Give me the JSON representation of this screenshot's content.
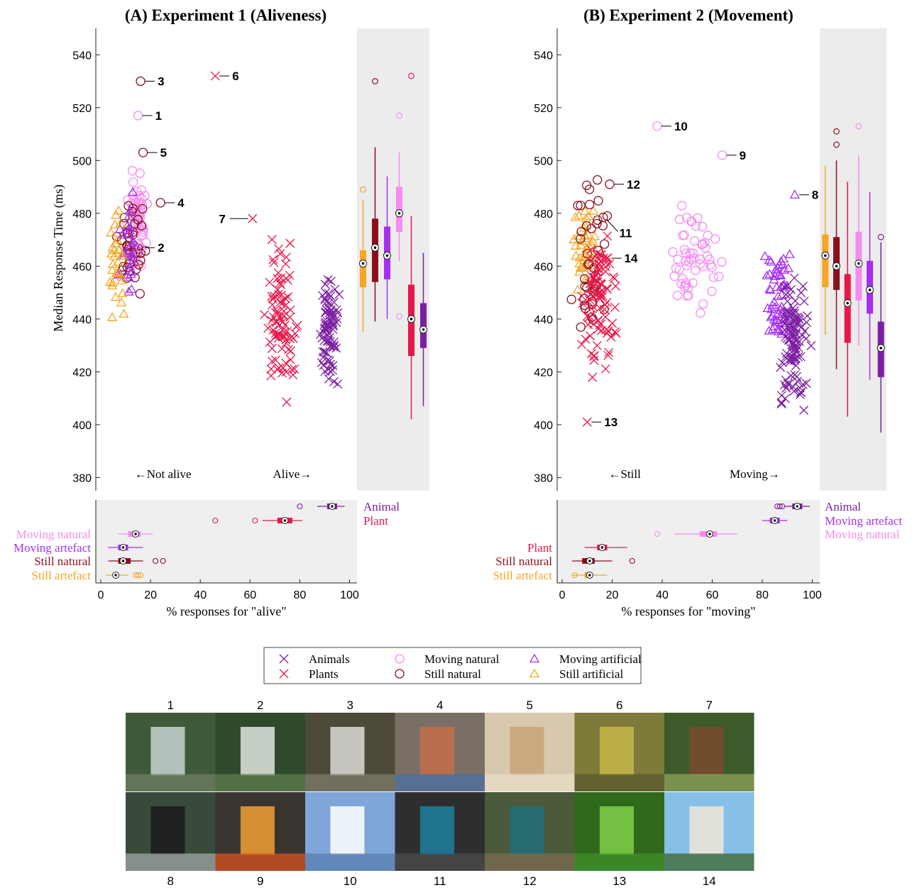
{
  "colors": {
    "animals": "#7b1fa2",
    "plants": "#e8174a",
    "moving_natural": "#f58cf0",
    "still_natural": "#8b0f1c",
    "moving_artificial": "#a62ff0",
    "still_artificial": "#f5a623",
    "panel_gray": "#efefef",
    "gray_zone": "#ececec"
  },
  "legend": {
    "items": [
      {
        "key": "animals",
        "label": "Animals",
        "marker": "x"
      },
      {
        "key": "moving_natural",
        "label": "Moving natural",
        "marker": "o"
      },
      {
        "key": "moving_artificial",
        "label": "Moving artificial",
        "marker": "triangle"
      },
      {
        "key": "plants",
        "label": "Plants",
        "marker": "x"
      },
      {
        "key": "still_natural",
        "label": "Still natural",
        "marker": "o"
      },
      {
        "key": "still_artificial",
        "label": "Still artificial",
        "marker": "triangle"
      }
    ]
  },
  "thumbnails": {
    "row1_numbers": [
      "1",
      "2",
      "3",
      "4",
      "5",
      "6",
      "7"
    ],
    "row2_numbers": [
      "8",
      "9",
      "10",
      "11",
      "12",
      "13",
      "14"
    ],
    "row1_icons": [
      "waterfall-photo",
      "waterfall-photo",
      "crystal-photo",
      "seashell-photo",
      "seashell-photo",
      "lichen-photo",
      "tree-photo"
    ],
    "row2_icons": [
      "steam-train-photo",
      "campfire-photo",
      "clouds-photo",
      "rocky-coast-photo",
      "sea-cliff-photo",
      "grass-photo",
      "palm-beach-photo"
    ]
  },
  "chart_data": [
    {
      "panel": "A",
      "type": "scatter",
      "title": "(A) Experiment 1 (Aliveness)",
      "ylabel": "Median Response Time (ms)",
      "xlabel": "% responses for \"alive\"",
      "ylim": [
        375,
        550
      ],
      "xlim": [
        -2,
        103
      ],
      "yticks": [
        380,
        400,
        420,
        440,
        460,
        480,
        500,
        520,
        540
      ],
      "xticks": [
        0,
        20,
        40,
        60,
        80,
        100
      ],
      "region_labels": [
        "←Not alive",
        "Alive→"
      ],
      "annotations": [
        {
          "label": "1",
          "x": 15,
          "y": 517,
          "cat": "moving_natural",
          "marker": "o"
        },
        {
          "label": "2",
          "x": 16,
          "y": 467,
          "cat": "moving_natural",
          "marker": "o"
        },
        {
          "label": "3",
          "x": 16,
          "y": 530,
          "cat": "still_natural",
          "marker": "o"
        },
        {
          "label": "4",
          "x": 24,
          "y": 484,
          "cat": "still_natural",
          "marker": "o"
        },
        {
          "label": "5",
          "x": 17,
          "y": 503,
          "cat": "still_natural",
          "marker": "o"
        },
        {
          "label": "6",
          "x": 46,
          "y": 532,
          "cat": "plants",
          "marker": "x"
        },
        {
          "label": "7",
          "x": 61,
          "y": 478,
          "cat": "plants",
          "marker": "x"
        }
      ],
      "clusters": [
        {
          "cat": "moving_natural",
          "marker": "o",
          "n": 55,
          "x": [
            10,
            20
          ],
          "y": [
            452,
            503
          ]
        },
        {
          "cat": "still_natural",
          "marker": "o",
          "n": 40,
          "x": [
            3,
            21
          ],
          "y": [
            445,
            492
          ]
        },
        {
          "cat": "moving_artificial",
          "marker": "triangle",
          "n": 30,
          "x": [
            6,
            17
          ],
          "y": [
            438,
            494
          ]
        },
        {
          "cat": "still_artificial",
          "marker": "triangle",
          "n": 30,
          "x": [
            1,
            12
          ],
          "y": [
            433,
            490
          ]
        },
        {
          "cat": "plants",
          "marker": "x",
          "n": 90,
          "x": [
            64,
            82
          ],
          "y": [
            400,
            477
          ]
        },
        {
          "cat": "animals",
          "marker": "x",
          "n": 80,
          "x": [
            86,
            97
          ],
          "y": [
            405,
            464
          ]
        }
      ],
      "boxplots": [
        {
          "cat": "still_artificial",
          "median": 461,
          "q1": 452,
          "q3": 466,
          "wlo": 435,
          "whi": 485,
          "outliers": [
            489
          ]
        },
        {
          "cat": "still_natural",
          "median": 467,
          "q1": 454,
          "q3": 478,
          "wlo": 439,
          "whi": 505,
          "outliers": [
            530
          ]
        },
        {
          "cat": "moving_artificial",
          "median": 464,
          "q1": 455,
          "q3": 475,
          "wlo": 440,
          "whi": 494,
          "outliers": []
        },
        {
          "cat": "moving_natural",
          "median": 480,
          "q1": 473,
          "q3": 490,
          "wlo": 462,
          "whi": 503,
          "outliers": [
            517,
            441
          ]
        },
        {
          "cat": "plants",
          "median": 440,
          "q1": 426,
          "q3": 453,
          "wlo": 402,
          "whi": 479,
          "outliers": [
            532
          ]
        },
        {
          "cat": "animals",
          "median": 436,
          "q1": 429,
          "q3": 446,
          "wlo": 407,
          "whi": 465,
          "outliers": []
        }
      ],
      "summary_rows": [
        {
          "label": "Animal",
          "cat": "animals",
          "median": 93,
          "q1": 91,
          "q3": 95,
          "wlo": 87,
          "whi": 98,
          "outliers": [
            80
          ],
          "side": "right"
        },
        {
          "label": "Plant",
          "cat": "plants",
          "median": 74,
          "q1": 71,
          "q3": 77,
          "wlo": 65,
          "whi": 81,
          "outliers": [
            62,
            46
          ],
          "side": "right"
        },
        {
          "label": "Moving natural",
          "cat": "moving_natural",
          "median": 14,
          "q1": 11,
          "q3": 16,
          "wlo": 7,
          "whi": 21,
          "outliers": [],
          "side": "left"
        },
        {
          "label": "Moving artefact",
          "cat": "moving_artificial",
          "median": 9,
          "q1": 7,
          "q3": 11,
          "wlo": 3,
          "whi": 17,
          "outliers": [],
          "side": "left"
        },
        {
          "label": "Still natural",
          "cat": "still_natural",
          "median": 9,
          "q1": 7,
          "q3": 12,
          "wlo": 3,
          "whi": 17,
          "outliers": [
            22,
            25
          ],
          "side": "left"
        },
        {
          "label": "Still artefact",
          "cat": "still_artificial",
          "median": 6,
          "q1": 5,
          "q3": 7,
          "wlo": 2,
          "whi": 11,
          "outliers": [
            14,
            15,
            16
          ],
          "side": "left"
        }
      ]
    },
    {
      "panel": "B",
      "type": "scatter",
      "title": "(B) Experiment 2 (Movement)",
      "ylabel": "",
      "xlabel": "% responses for \"moving\"",
      "ylim": [
        375,
        550
      ],
      "xlim": [
        -2,
        103
      ],
      "yticks": [
        380,
        400,
        420,
        440,
        460,
        480,
        500,
        520,
        540
      ],
      "xticks": [
        0,
        20,
        40,
        60,
        80,
        100
      ],
      "region_labels": [
        "←Still",
        "Moving→"
      ],
      "annotations": [
        {
          "label": "8",
          "x": 93,
          "y": 487,
          "cat": "moving_artificial",
          "marker": "triangle"
        },
        {
          "label": "9",
          "x": 64,
          "y": 502,
          "cat": "moving_natural",
          "marker": "o"
        },
        {
          "label": "10",
          "x": 38,
          "y": 513,
          "cat": "moving_natural",
          "marker": "o"
        },
        {
          "label": "11",
          "x": 18,
          "y": 479,
          "cat": "still_natural",
          "marker": "o",
          "leader": "diag"
        },
        {
          "label": "12",
          "x": 19,
          "y": 491,
          "cat": "still_natural",
          "marker": "o"
        },
        {
          "label": "13",
          "x": 10,
          "y": 401,
          "cat": "plants",
          "marker": "x"
        },
        {
          "label": "14",
          "x": 18,
          "y": 463,
          "cat": "plants",
          "marker": "x"
        }
      ],
      "clusters": [
        {
          "cat": "still_artificial",
          "marker": "triangle",
          "n": 40,
          "x": [
            2,
            16
          ],
          "y": [
            432,
            497
          ]
        },
        {
          "cat": "still_natural",
          "marker": "o",
          "n": 40,
          "x": [
            1,
            22
          ],
          "y": [
            419,
            510
          ]
        },
        {
          "cat": "plants",
          "marker": "x",
          "n": 90,
          "x": [
            6,
            24
          ],
          "y": [
            408,
            486
          ]
        },
        {
          "cat": "moving_natural",
          "marker": "o",
          "n": 55,
          "x": [
            39,
            68
          ],
          "y": [
            428,
            498
          ]
        },
        {
          "cat": "moving_artificial",
          "marker": "triangle",
          "n": 55,
          "x": [
            78,
            95
          ],
          "y": [
            415,
            480
          ]
        },
        {
          "cat": "animals",
          "marker": "x",
          "n": 110,
          "x": [
            84,
            101
          ],
          "y": [
            394,
            470
          ]
        }
      ],
      "boxplots": [
        {
          "cat": "still_artificial",
          "median": 464,
          "q1": 452,
          "q3": 472,
          "wlo": 434,
          "whi": 498,
          "outliers": []
        },
        {
          "cat": "still_natural",
          "median": 460,
          "q1": 451,
          "q3": 471,
          "wlo": 421,
          "whi": 500,
          "outliers": [
            511,
            506
          ]
        },
        {
          "cat": "plants",
          "median": 446,
          "q1": 431,
          "q3": 457,
          "wlo": 403,
          "whi": 492,
          "outliers": []
        },
        {
          "cat": "moving_natural",
          "median": 461,
          "q1": 447,
          "q3": 473,
          "wlo": 430,
          "whi": 502,
          "outliers": [
            513
          ]
        },
        {
          "cat": "moving_artificial",
          "median": 451,
          "q1": 442,
          "q3": 462,
          "wlo": 417,
          "whi": 488,
          "outliers": []
        },
        {
          "cat": "animals",
          "median": 429,
          "q1": 418,
          "q3": 439,
          "wlo": 397,
          "whi": 469,
          "outliers": [
            471
          ]
        }
      ],
      "summary_rows": [
        {
          "label": "Animal",
          "cat": "animals",
          "median": 94,
          "q1": 92,
          "q3": 96,
          "wlo": 89,
          "whi": 99,
          "outliers": [
            86,
            87,
            88
          ],
          "side": "right"
        },
        {
          "label": "Moving artefact",
          "cat": "moving_artificial",
          "median": 85,
          "q1": 83,
          "q3": 87,
          "wlo": 80,
          "whi": 90,
          "outliers": [],
          "side": "right"
        },
        {
          "label": "Moving natural",
          "cat": "moving_natural",
          "median": 59,
          "q1": 55,
          "q3": 62,
          "wlo": 45,
          "whi": 70,
          "outliers": [
            38
          ],
          "side": "right"
        },
        {
          "label": "Plant",
          "cat": "plants",
          "median": 16,
          "q1": 14,
          "q3": 18,
          "wlo": 9,
          "whi": 26,
          "outliers": [],
          "side": "left"
        },
        {
          "label": "Still natural",
          "cat": "still_natural",
          "median": 11,
          "q1": 8,
          "q3": 13,
          "wlo": 4,
          "whi": 20,
          "outliers": [
            28
          ],
          "side": "left"
        },
        {
          "label": "Still artefact",
          "cat": "still_artificial",
          "median": 11,
          "q1": 9,
          "q3": 12,
          "wlo": 4,
          "whi": 18,
          "outliers": [
            5
          ],
          "side": "left"
        }
      ]
    }
  ]
}
